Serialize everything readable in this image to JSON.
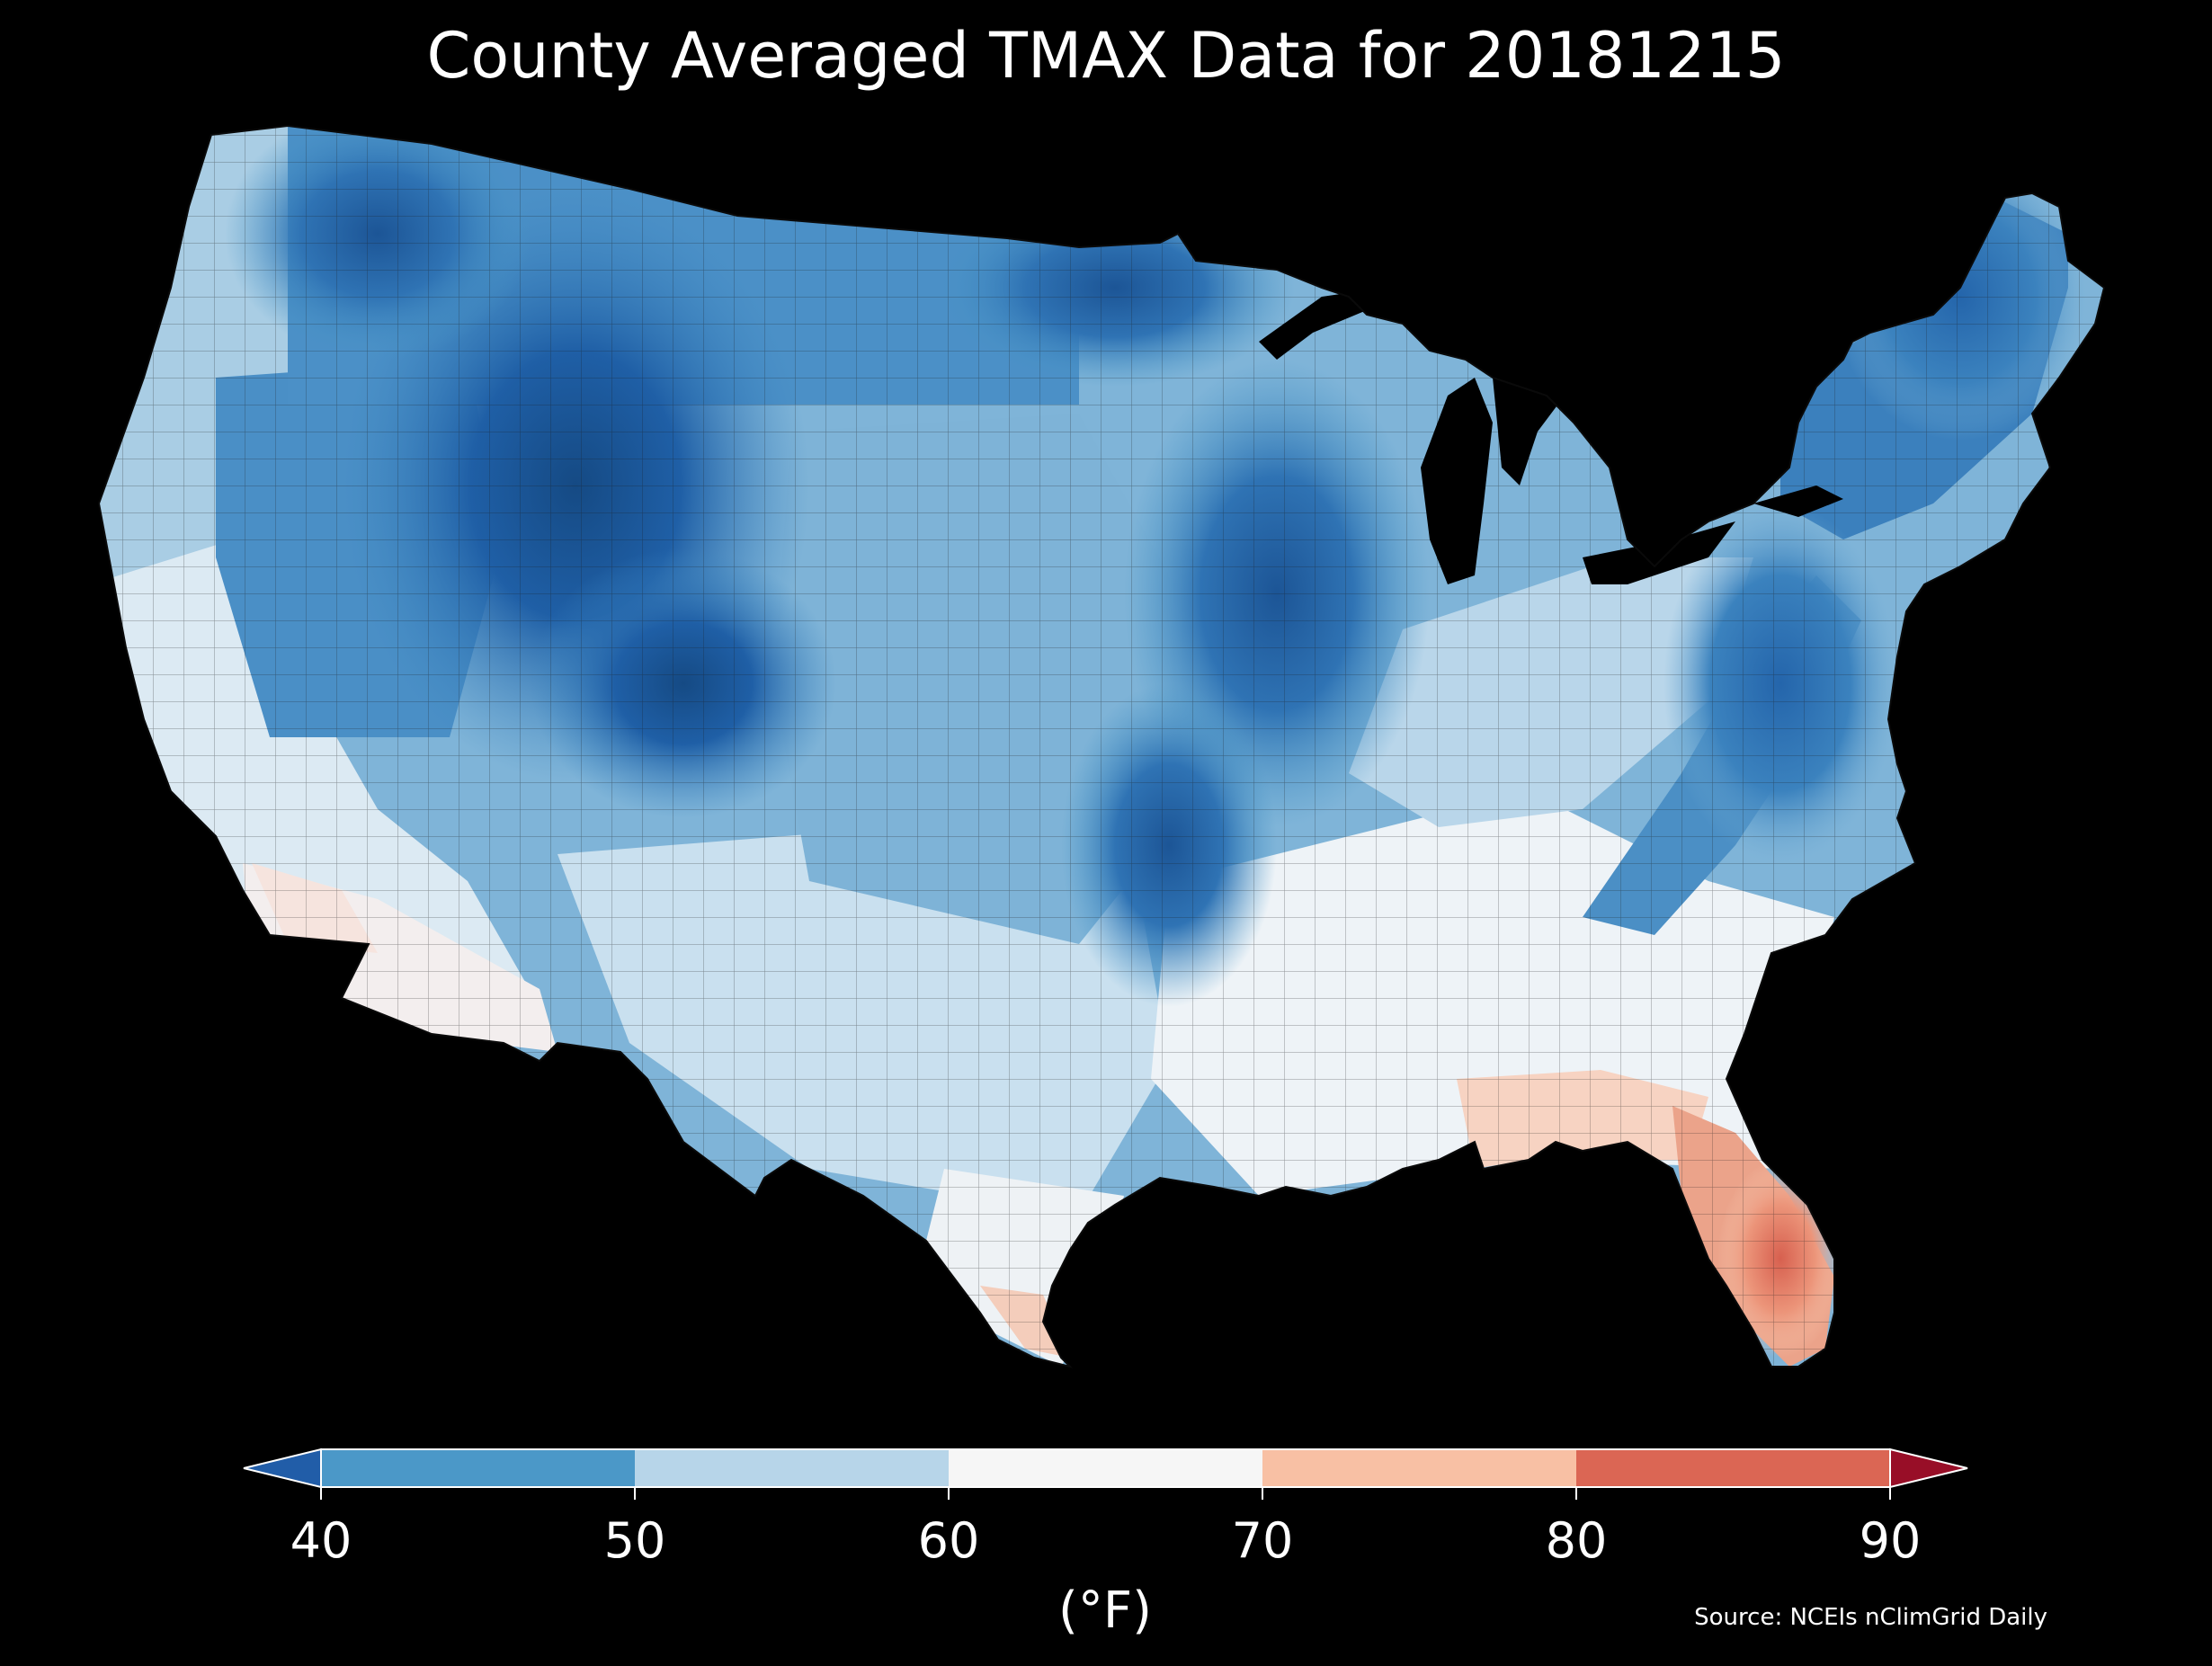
{
  "title": "County Averaged TMAX Data for 20181215",
  "source": "Source: NCEIs nClimGrid Daily",
  "colorbar": {
    "unit": "(°F)",
    "ticks": [
      "40",
      "50",
      "60",
      "70",
      "80",
      "90"
    ],
    "bins": [
      {
        "from": 40,
        "to": 50,
        "color": "#4b98c8"
      },
      {
        "from": 50,
        "to": 60,
        "color": "#b7d5e9"
      },
      {
        "from": 60,
        "to": 70,
        "color": "#f6f6f6"
      },
      {
        "from": 70,
        "to": 80,
        "color": "#f8c0a4"
      },
      {
        "from": 80,
        "to": 90,
        "color": "#db6654"
      }
    ],
    "under_color": "#215da8",
    "over_color": "#980e27"
  },
  "map": {
    "region": "Contiguous United States",
    "variable": "TMAX",
    "date": "20181215",
    "background": "#000000",
    "border_color": "#1a1a1a"
  }
}
